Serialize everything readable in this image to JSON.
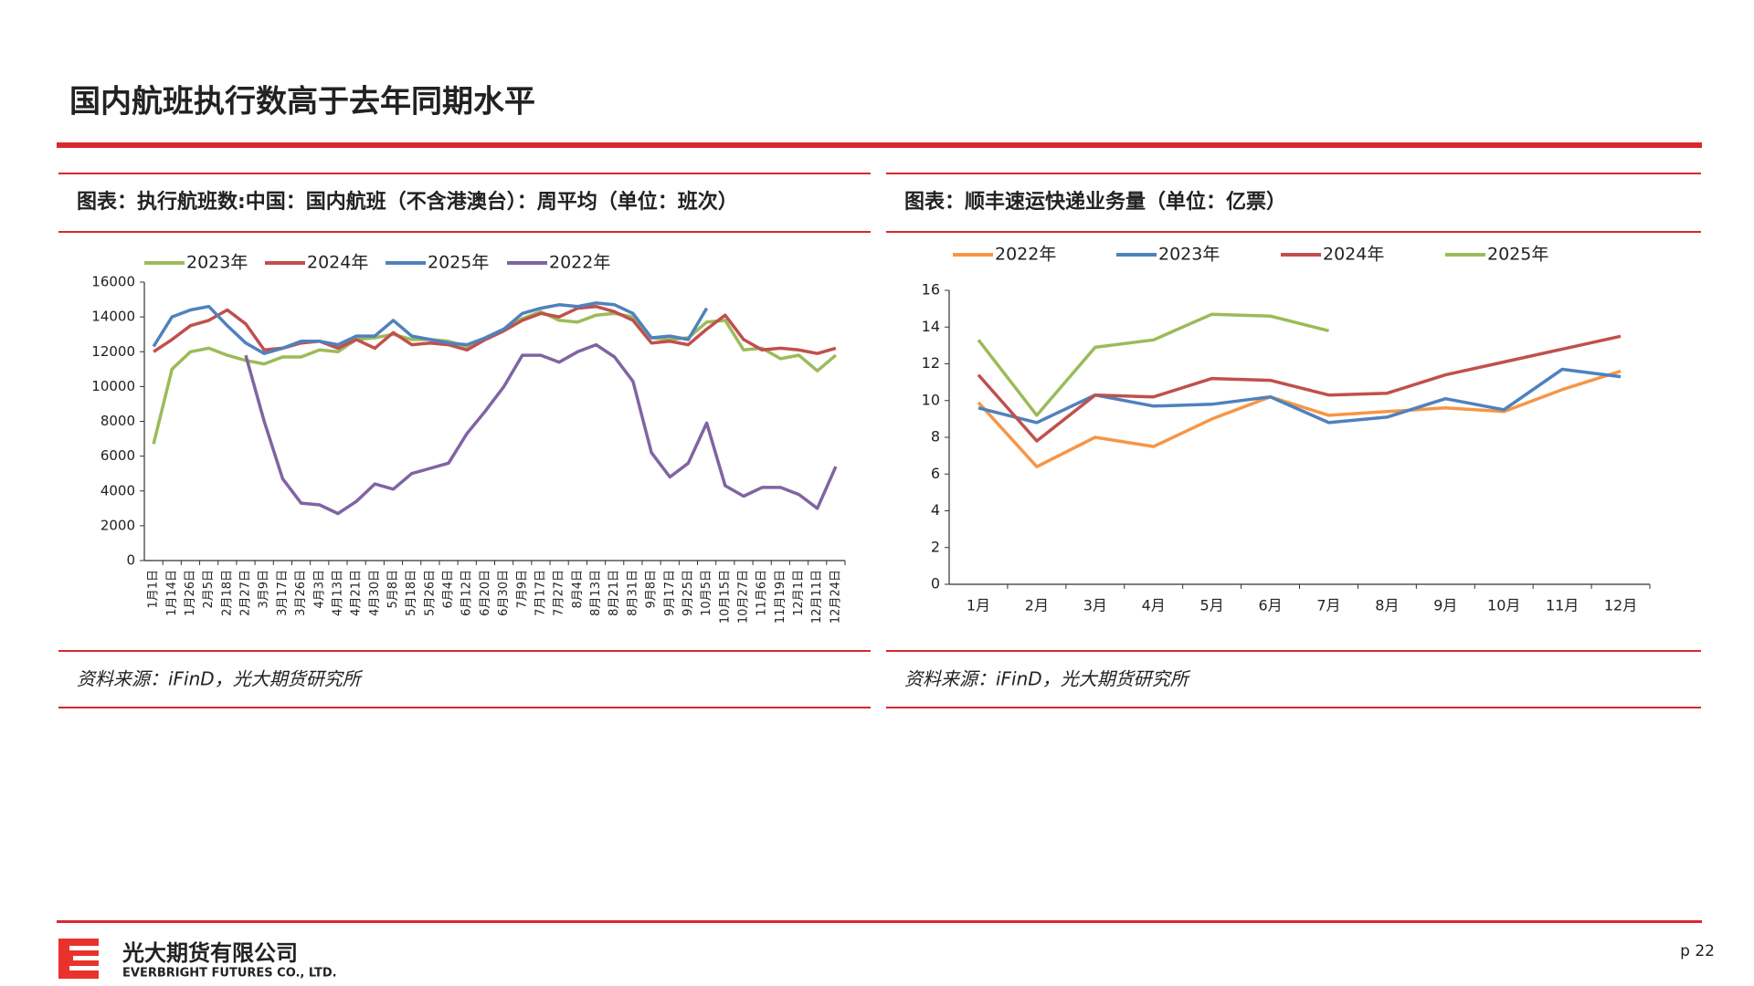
{
  "page": {
    "title": "国内航班执行数高于去年同期水平",
    "company": "光大期货有限公司",
    "company_en": "EVERBRIGHT FUTURES CO., LTD.",
    "page_number": "p 22"
  },
  "chart_data": [
    {
      "type": "line",
      "title": "图表：执行航班数:中国：国内航班（不含港澳台）：周平均（单位：班次）",
      "source": "资料来源：iFinD，光大期货研究所",
      "categories": [
        "1月1日",
        "1月14日",
        "1月26日",
        "2月5日",
        "2月18日",
        "2月27日",
        "3月9日",
        "3月17日",
        "3月26日",
        "4月3日",
        "4月13日",
        "4月21日",
        "4月30日",
        "5月8日",
        "5月18日",
        "5月26日",
        "6月4日",
        "6月12日",
        "6月20日",
        "6月30日",
        "7月9日",
        "7月17日",
        "7月27日",
        "8月4日",
        "8月13日",
        "8月21日",
        "8月31日",
        "9月8日",
        "9月17日",
        "9月25日",
        "10月5日",
        "10月15日",
        "10月27日",
        "11月6日",
        "11月19日",
        "12月1日",
        "12月11日",
        "12月24日"
      ],
      "series": [
        {
          "name": "2023年",
          "color": "#9bbb59",
          "values": [
            6700,
            11000,
            12000,
            12200,
            11800,
            11500,
            11300,
            11700,
            11700,
            12100,
            12000,
            12700,
            12800,
            13000,
            12700,
            12700,
            12600,
            12300,
            12800,
            13300,
            13900,
            14300,
            13800,
            13700,
            14100,
            14200,
            14000,
            12800,
            12700,
            12800,
            13700,
            13800,
            12100,
            12200,
            11600,
            11800,
            10900,
            11800
          ]
        },
        {
          "name": "2024年",
          "color": "#c0504d",
          "values": [
            12000,
            12700,
            13500,
            13800,
            14400,
            13600,
            12100,
            12200,
            12500,
            12600,
            12200,
            12700,
            12200,
            13100,
            12400,
            12500,
            12400,
            12100,
            12700,
            13200,
            13800,
            14200,
            14000,
            14500,
            14600,
            14300,
            13800,
            12500,
            12600,
            12400,
            13300,
            14100,
            12700,
            12100,
            12200,
            12100,
            11900,
            12200
          ]
        },
        {
          "name": "2025年",
          "color": "#4f81bd",
          "values": [
            12300,
            14000,
            14400,
            14600,
            13500,
            12500,
            11900,
            12200,
            12600,
            12600,
            12400,
            12900,
            12900,
            13800,
            12900,
            12700,
            12500,
            12400,
            12800,
            13300,
            14200,
            14500,
            14700,
            14600,
            14800,
            14700,
            14200,
            12800,
            12900,
            12700,
            14500,
            null,
            null,
            null,
            null,
            null,
            null,
            null
          ]
        },
        {
          "name": "2022年",
          "color": "#8064a2",
          "values": [
            null,
            null,
            null,
            null,
            null,
            11800,
            8000,
            4700,
            3300,
            3200,
            2700,
            3400,
            4400,
            4100,
            5000,
            5300,
            5600,
            7300,
            8600,
            10000,
            11800,
            11800,
            11400,
            12000,
            12400,
            11700,
            10300,
            6200,
            4800,
            5600,
            7900,
            4300,
            3700,
            4200,
            4200,
            3800,
            3000,
            5400
          ]
        }
      ],
      "ylim": [
        0,
        16000
      ],
      "yticks": [
        0,
        2000,
        4000,
        6000,
        8000,
        10000,
        12000,
        14000,
        16000
      ],
      "x_labels_rotated": true
    },
    {
      "type": "line",
      "title": "图表：顺丰速运快递业务量（单位：亿票）",
      "source": "资料来源：iFinD，光大期货研究所",
      "categories": [
        "1月",
        "2月",
        "3月",
        "4月",
        "5月",
        "6月",
        "7月",
        "8月",
        "9月",
        "10月",
        "11月",
        "12月"
      ],
      "series": [
        {
          "name": "2022年",
          "color": "#f79646",
          "values": [
            9.9,
            6.4,
            8.0,
            7.5,
            9.0,
            10.2,
            9.2,
            9.4,
            9.6,
            9.4,
            10.6,
            11.6
          ]
        },
        {
          "name": "2023年",
          "color": "#4f81bd",
          "values": [
            9.6,
            8.8,
            10.3,
            9.7,
            9.8,
            10.2,
            8.8,
            9.1,
            10.1,
            9.5,
            11.7,
            11.3
          ]
        },
        {
          "name": "2024年",
          "color": "#c0504d",
          "values": [
            11.4,
            7.8,
            10.3,
            10.2,
            11.2,
            11.1,
            10.3,
            10.4,
            11.4,
            12.1,
            12.8,
            13.5
          ]
        },
        {
          "name": "2025年",
          "color": "#9bbb59",
          "values": [
            13.3,
            9.2,
            12.9,
            13.3,
            14.7,
            14.6,
            13.8,
            null,
            null,
            null,
            null,
            null
          ]
        }
      ],
      "ylim": [
        0,
        16
      ],
      "yticks": [
        0,
        2,
        4,
        6,
        8,
        10,
        12,
        14,
        16
      ],
      "x_labels_rotated": false
    }
  ]
}
